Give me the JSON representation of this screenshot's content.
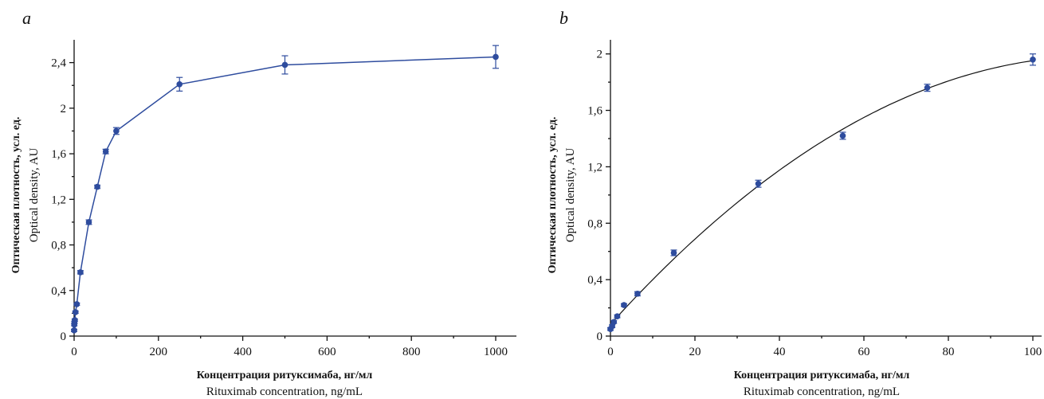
{
  "colors": {
    "series": "#2e4c9e",
    "fit": "#111111",
    "axis": "#111111"
  },
  "chart_data": [
    {
      "type": "line",
      "panel_label": "a",
      "xlabel_ru": "Концентрация ритуксимаба, нг/мл",
      "xlabel_en": "Rituximab concentration, ng/mL",
      "ylabel_ru": "Оптическая плотность, усл. ед.",
      "ylabel_en": "Optical density, AU",
      "xlim": [
        0,
        1000
      ],
      "ylim": [
        0,
        2.6
      ],
      "xticks": [
        0,
        200,
        400,
        600,
        800,
        1000
      ],
      "xtick_labels": [
        "0",
        "200",
        "400",
        "600",
        "800",
        "1000"
      ],
      "yticks": [
        0,
        0.4,
        0.8,
        1.2,
        1.6,
        2,
        2.4
      ],
      "ytick_labels": [
        "0",
        "0,4",
        "0,8",
        "1,2",
        "1,6",
        "2",
        "2,4"
      ],
      "grid": false,
      "series": [
        {
          "connected": true,
          "x": [
            0,
            0.4,
            0.8,
            1.6,
            3.2,
            6.4,
            15,
            35,
            55,
            75,
            100,
            250,
            500,
            1000
          ],
          "y": [
            0.05,
            0.1,
            0.12,
            0.14,
            0.21,
            0.28,
            0.56,
            1.0,
            1.31,
            1.62,
            1.8,
            2.21,
            2.38,
            2.45
          ],
          "err": [
            0.01,
            0.01,
            0.01,
            0.01,
            0.01,
            0.01,
            0.015,
            0.02,
            0.015,
            0.02,
            0.03,
            0.06,
            0.08,
            0.1
          ]
        }
      ]
    },
    {
      "type": "scatter",
      "panel_label": "b",
      "xlabel_ru": "Концентрация ритуксимаба, нг/мл",
      "xlabel_en": "Rituximab concentration, ng/mL",
      "ylabel_ru": "Оптическая плотность, усл. ед.",
      "ylabel_en": "Optical density, AU",
      "xlim": [
        0,
        100
      ],
      "ylim": [
        0,
        2.1
      ],
      "xticks": [
        0,
        20,
        40,
        60,
        80,
        100
      ],
      "xtick_labels": [
        "0",
        "20",
        "40",
        "60",
        "80",
        "100"
      ],
      "yticks": [
        0,
        0.4,
        0.8,
        1.2,
        1.6,
        2
      ],
      "ytick_labels": [
        "0",
        "0,4",
        "0,8",
        "1,2",
        "1,6",
        "2"
      ],
      "grid": false,
      "fit_curve": true,
      "series": [
        {
          "connected": false,
          "x": [
            0,
            0.4,
            0.8,
            1.6,
            3.2,
            6.4,
            15,
            35,
            55,
            75,
            100
          ],
          "y": [
            0.05,
            0.07,
            0.1,
            0.14,
            0.22,
            0.3,
            0.59,
            1.08,
            1.42,
            1.76,
            1.96
          ],
          "err": [
            0.01,
            0.01,
            0.01,
            0.01,
            0.01,
            0.015,
            0.02,
            0.025,
            0.025,
            0.025,
            0.04
          ]
        }
      ]
    }
  ]
}
